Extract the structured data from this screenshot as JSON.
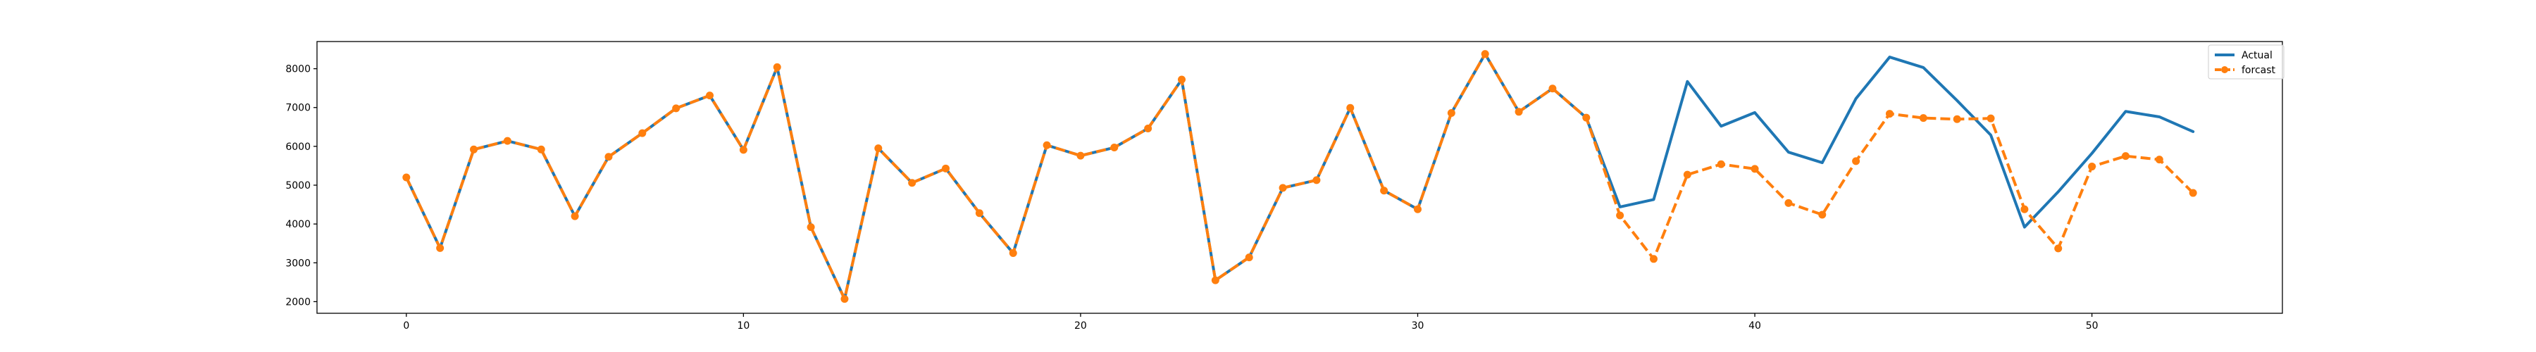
{
  "chart_data": {
    "type": "line",
    "title": "",
    "xlabel": "",
    "ylabel": "",
    "xlim": [
      -2.65,
      55.65
    ],
    "ylim": [
      1700,
      8700
    ],
    "xticks": [
      0,
      10,
      20,
      30,
      40,
      50
    ],
    "yticks": [
      2000,
      3000,
      4000,
      5000,
      6000,
      7000,
      8000
    ],
    "grid": false,
    "legend_position": "top-right",
    "series": [
      {
        "name": "Actual",
        "color": "#1f77b4",
        "line_style": "solid",
        "marker": "none",
        "x": [
          0,
          1,
          2,
          3,
          4,
          5,
          6,
          7,
          8,
          9,
          10,
          11,
          12,
          13,
          14,
          15,
          16,
          17,
          18,
          19,
          20,
          21,
          22,
          23,
          24,
          25,
          26,
          27,
          28,
          29,
          30,
          31,
          32,
          33,
          34,
          35,
          36,
          37,
          38,
          39,
          40,
          41,
          42,
          43,
          44,
          45,
          46,
          47,
          48,
          49,
          50,
          51,
          52,
          53
        ],
        "values": [
          5200,
          3380,
          5920,
          6140,
          5920,
          4200,
          5730,
          6340,
          6980,
          7310,
          5910,
          8040,
          3920,
          2070,
          5950,
          5060,
          5430,
          4280,
          3250,
          6030,
          5760,
          5970,
          6460,
          7720,
          2550,
          3140,
          4930,
          5130,
          6990,
          4860,
          4380,
          6860,
          8380,
          6890,
          7490,
          6740,
          4440,
          4630,
          7670,
          6520,
          6870,
          5850,
          5580,
          7230,
          8300,
          8030,
          7180,
          6290,
          3920,
          4830,
          5820,
          6900,
          6760,
          6380
        ]
      },
      {
        "name": "forcast",
        "color": "#ff7f0e",
        "line_style": "dashed",
        "marker": "circle",
        "x": [
          0,
          1,
          2,
          3,
          4,
          5,
          6,
          7,
          8,
          9,
          10,
          11,
          12,
          13,
          14,
          15,
          16,
          17,
          18,
          19,
          20,
          21,
          22,
          23,
          24,
          25,
          26,
          27,
          28,
          29,
          30,
          31,
          32,
          33,
          34,
          35,
          36,
          37,
          38,
          39,
          40,
          41,
          42,
          43,
          44,
          45,
          46,
          47,
          48,
          49,
          50,
          51,
          52,
          53
        ],
        "values": [
          5200,
          3380,
          5920,
          6140,
          5920,
          4200,
          5730,
          6340,
          6980,
          7310,
          5910,
          8040,
          3920,
          2070,
          5950,
          5060,
          5430,
          4280,
          3250,
          6030,
          5760,
          5970,
          6460,
          7720,
          2550,
          3140,
          4930,
          5130,
          6990,
          4860,
          4380,
          6860,
          8380,
          6890,
          7490,
          6740,
          4220,
          3100,
          5270,
          5540,
          5420,
          4540,
          4240,
          5620,
          6840,
          6730,
          6700,
          6720,
          4380,
          3370,
          5480,
          5750,
          5660,
          4800
        ]
      }
    ]
  }
}
